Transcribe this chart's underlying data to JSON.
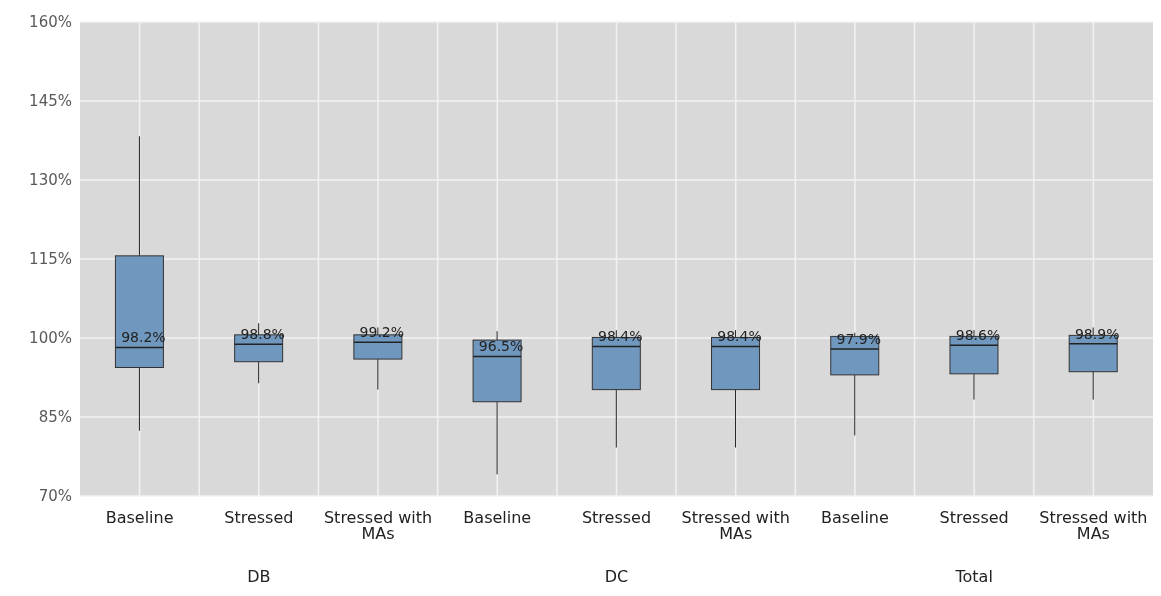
{
  "chart_data": {
    "type": "box",
    "categories": [
      "Baseline",
      "Stressed",
      "Stressed with MAs",
      "Baseline",
      "Stressed",
      "Stressed with MAs",
      "Baseline",
      "Stressed",
      "Stressed with MAs"
    ],
    "annotations": [
      "DB",
      "DC",
      "Total"
    ],
    "color": "#7097bd",
    "boxes": [
      {
        "low": 82.4,
        "q1": 94.4,
        "median": 98.2,
        "q3": 115.6,
        "high": 138.3
      },
      {
        "low": 91.4,
        "q1": 95.5,
        "median": 98.8,
        "q3": 100.6,
        "high": 102.8
      },
      {
        "low": 90.2,
        "q1": 96.0,
        "median": 99.2,
        "q3": 100.6,
        "high": 102
      },
      {
        "low": 74.1,
        "q1": 87.9,
        "median": 96.5,
        "q3": 99.6,
        "high": 101.3
      },
      {
        "low": 79.2,
        "q1": 90.2,
        "median": 98.4,
        "q3": 100.1,
        "high": 101.5
      },
      {
        "low": 79.2,
        "q1": 90.2,
        "median": 98.4,
        "q3": 100.1,
        "high": 101.5
      },
      {
        "low": 81.5,
        "q1": 93.0,
        "median": 97.9,
        "q3": 100.3,
        "high": 101
      },
      {
        "low": 88.3,
        "q1": 93.2,
        "median": 98.6,
        "q3": 100.3,
        "high": 101.5
      },
      {
        "low": 88.3,
        "q1": 93.6,
        "median": 98.9,
        "q3": 100.5,
        "high": 102
      }
    ],
    "value_labels": [
      "98.2%",
      "98.8%",
      "99.2%",
      "96.5%",
      "98.4%",
      "98.4%",
      "97.9%",
      "98.6%",
      "98.9%"
    ],
    "ylim": [
      70,
      160
    ],
    "yticks": [
      {
        "value": 70,
        "label": "70%"
      },
      {
        "value": 85,
        "label": "85%"
      },
      {
        "value": 100,
        "label": "100%"
      },
      {
        "value": 115,
        "label": "115%"
      },
      {
        "value": 130,
        "label": "130%"
      },
      {
        "value": 145,
        "label": "145%"
      },
      {
        "value": 160,
        "label": "160%"
      }
    ],
    "grid": true
  }
}
